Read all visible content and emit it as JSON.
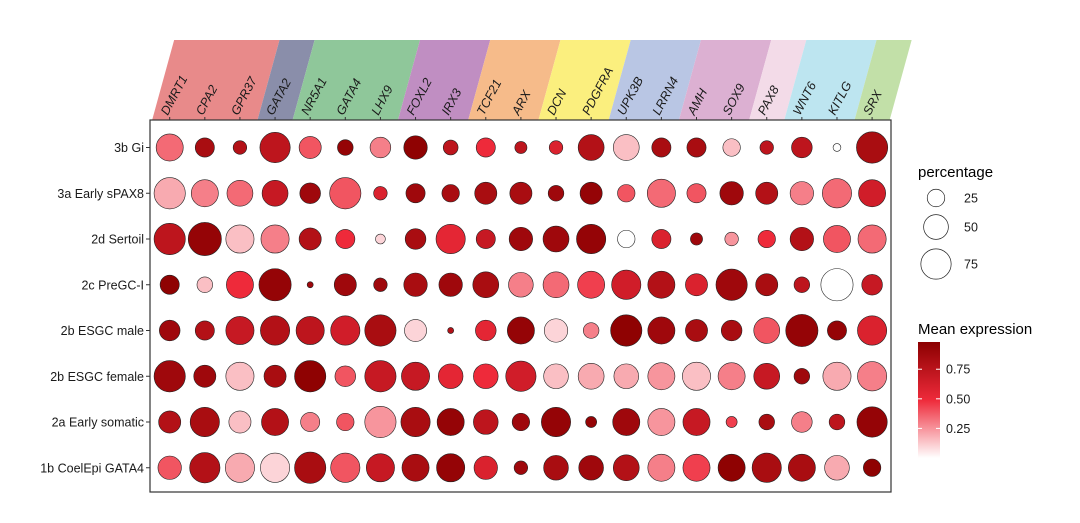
{
  "chart_data": {
    "type": "dotplot",
    "genes": [
      "DMRT1",
      "CPA2",
      "GPR37",
      "GATA2",
      "NR5A1",
      "GATA4",
      "LHX9",
      "FOXL2",
      "IRX3",
      "TCF21",
      "ARX",
      "DCN",
      "PDGFRA",
      "UPK3B",
      "LRRN4",
      "AMH",
      "SOX9",
      "PAX8",
      "WNT6",
      "KITLG",
      "SRX"
    ],
    "gene_groups": [
      {
        "color": "#e88a8a",
        "genes": [
          "DMRT1",
          "CPA2",
          "GPR37"
        ]
      },
      {
        "color": "#8a8eaa",
        "genes": [
          "GATA2"
        ]
      },
      {
        "color": "#8fc79a",
        "genes": [
          "NR5A1",
          "GATA4",
          "LHX9"
        ]
      },
      {
        "color": "#c08ec2",
        "genes": [
          "FOXL2",
          "IRX3"
        ]
      },
      {
        "color": "#f6bb8a",
        "genes": [
          "TCF21",
          "ARX"
        ]
      },
      {
        "color": "#fbef7e",
        "genes": [
          "DCN",
          "PDGFRA"
        ]
      },
      {
        "color": "#b9c6e4",
        "genes": [
          "UPK3B",
          "LRRN4"
        ]
      },
      {
        "color": "#dcb0d2",
        "genes": [
          "AMH",
          "SOX9"
        ]
      },
      {
        "color": "#f3dbe8",
        "genes": [
          "PAX8"
        ]
      },
      {
        "color": "#bde5f0",
        "genes": [
          "WNT6",
          "KITLG"
        ]
      },
      {
        "color": "#c2e0a8",
        "genes": [
          "SRX"
        ]
      }
    ],
    "cell_types": [
      "3b Gi",
      "3a Early sPAX8",
      "2d Sertoil",
      "2c PreGC-I",
      "2b ESGC male",
      "2b ESGC female",
      "2a Early somatic",
      "1b CoelEpi GATA4"
    ],
    "percentage": [
      [
        60,
        30,
        15,
        75,
        40,
        20,
        35,
        45,
        18,
        30,
        12,
        15,
        55,
        55,
        30,
        30,
        25,
        15,
        35,
        5,
        80
      ],
      [
        80,
        60,
        55,
        55,
        35,
        80,
        15,
        30,
        25,
        40,
        40,
        20,
        40,
        25,
        65,
        30,
        45,
        40,
        45,
        70,
        60
      ],
      [
        80,
        90,
        65,
        65,
        40,
        30,
        8,
        35,
        70,
        30,
        45,
        55,
        70,
        25,
        30,
        12,
        15,
        25,
        45,
        60,
        65
      ],
      [
        30,
        20,
        60,
        85,
        3,
        40,
        15,
        45,
        45,
        55,
        50,
        55,
        60,
        70,
        60,
        40,
        80,
        40,
        20,
        85,
        35
      ],
      [
        35,
        30,
        65,
        70,
        65,
        70,
        80,
        40,
        3,
        35,
        60,
        45,
        20,
        80,
        60,
        40,
        35,
        55,
        85,
        30,
        70
      ],
      [
        80,
        40,
        65,
        40,
        80,
        35,
        80,
        65,
        50,
        50,
        75,
        50,
        55,
        50,
        60,
        65,
        60,
        55,
        20,
        65,
        70
      ],
      [
        40,
        70,
        40,
        60,
        30,
        25,
        80,
        70,
        60,
        50,
        25,
        70,
        10,
        60,
        60,
        60,
        10,
        20,
        35,
        20,
        75
      ],
      [
        45,
        75,
        70,
        70,
        80,
        70,
        65,
        60,
        65,
        45,
        15,
        50,
        50,
        55,
        60,
        60,
        60,
        70,
        60,
        50,
        25
      ]
    ],
    "expression": [
      [
        0.35,
        0.85,
        0.8,
        0.75,
        0.4,
        0.95,
        0.3,
        0.98,
        0.75,
        0.5,
        0.75,
        0.6,
        0.8,
        0.15,
        0.85,
        0.85,
        0.15,
        0.75,
        0.75,
        0.0,
        0.85
      ],
      [
        0.2,
        0.3,
        0.35,
        0.7,
        0.9,
        0.4,
        0.6,
        0.9,
        0.85,
        0.85,
        0.85,
        0.9,
        0.95,
        0.4,
        0.35,
        0.4,
        0.9,
        0.8,
        0.3,
        0.35,
        0.65
      ],
      [
        0.75,
        0.95,
        0.15,
        0.3,
        0.8,
        0.5,
        0.1,
        0.85,
        0.55,
        0.7,
        0.9,
        0.9,
        0.95,
        0.0,
        0.6,
        0.9,
        0.25,
        0.5,
        0.8,
        0.4,
        0.35
      ],
      [
        0.98,
        0.15,
        0.5,
        0.95,
        0.9,
        0.9,
        0.9,
        0.85,
        0.9,
        0.85,
        0.3,
        0.35,
        0.45,
        0.65,
        0.8,
        0.6,
        0.9,
        0.85,
        0.75,
        0.0,
        0.7
      ],
      [
        0.9,
        0.8,
        0.7,
        0.8,
        0.75,
        0.65,
        0.85,
        0.1,
        0.8,
        0.55,
        0.95,
        0.1,
        0.3,
        0.98,
        0.9,
        0.85,
        0.85,
        0.4,
        0.95,
        0.95,
        0.6
      ],
      [
        0.9,
        0.9,
        0.15,
        0.85,
        0.98,
        0.4,
        0.7,
        0.7,
        0.55,
        0.5,
        0.65,
        0.15,
        0.2,
        0.2,
        0.25,
        0.15,
        0.3,
        0.7,
        0.9,
        0.2,
        0.3
      ],
      [
        0.8,
        0.85,
        0.15,
        0.8,
        0.3,
        0.4,
        0.25,
        0.85,
        0.95,
        0.75,
        0.9,
        0.95,
        0.95,
        0.9,
        0.25,
        0.7,
        0.45,
        0.85,
        0.3,
        0.75,
        0.95
      ],
      [
        0.4,
        0.8,
        0.2,
        0.1,
        0.85,
        0.4,
        0.7,
        0.85,
        0.95,
        0.6,
        0.9,
        0.85,
        0.9,
        0.8,
        0.3,
        0.45,
        0.98,
        0.85,
        0.85,
        0.2,
        0.98
      ]
    ],
    "legend_percentage": {
      "title": "percentage",
      "entries": [
        25,
        50,
        75
      ]
    },
    "legend_color": {
      "title": "Mean expression",
      "ticks": [
        0.75,
        0.5,
        0.25
      ],
      "tick_labels": [
        "0.75",
        "0.50",
        "0.25"
      ],
      "range": [
        0,
        1
      ],
      "low_color": "#ffffff",
      "high_color": "#8b0000",
      "mid_color": "#ee2a3a"
    }
  }
}
